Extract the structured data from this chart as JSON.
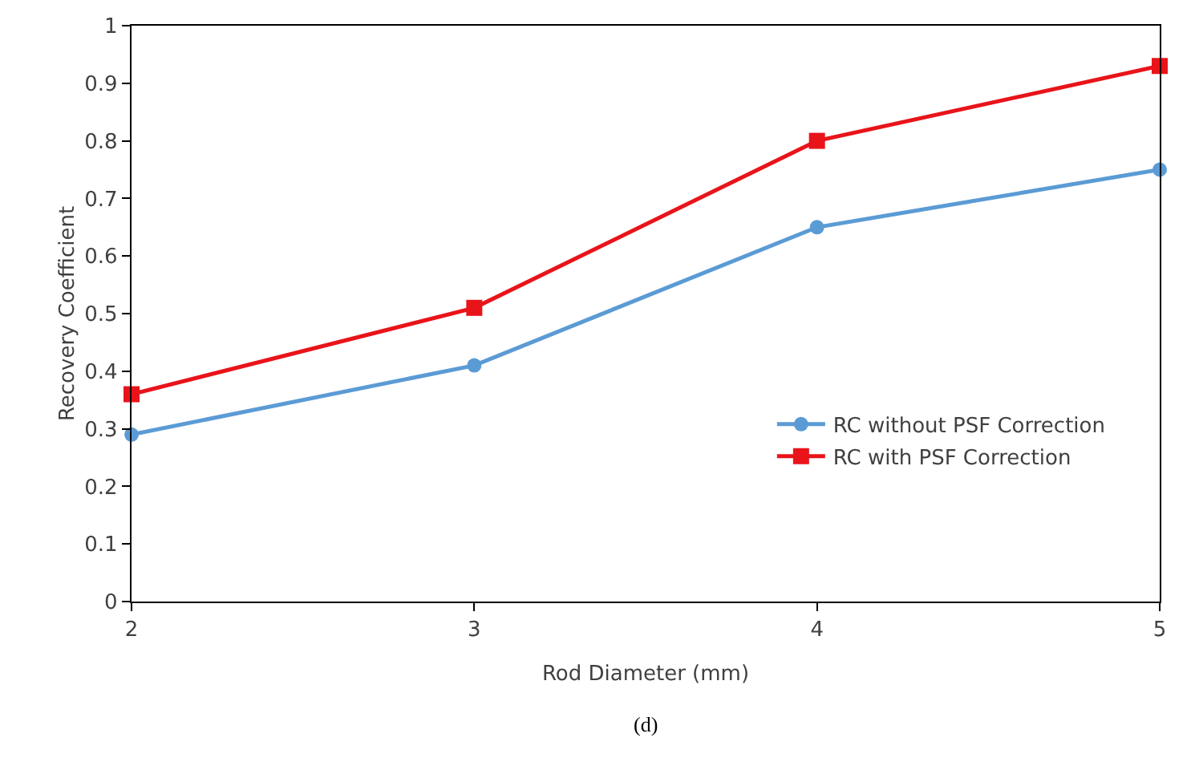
{
  "chart_data": {
    "type": "line",
    "xlabel": "Rod Diameter (mm)",
    "ylabel": "Recovery Coefficient",
    "x": [
      2,
      3,
      4,
      5
    ],
    "series": [
      {
        "name": "RC without PSF Correction",
        "color": "#5b9bd5",
        "marker": "circle",
        "values": [
          0.29,
          0.41,
          0.65,
          0.75
        ]
      },
      {
        "name": "RC with PSF Correction",
        "color": "#e8141a",
        "marker": "square",
        "values": [
          0.36,
          0.51,
          0.8,
          0.93
        ]
      }
    ],
    "xlim": [
      2,
      5
    ],
    "xticks": [
      2,
      3,
      4,
      5
    ],
    "ylim": [
      0,
      1
    ],
    "yticks": [
      0,
      0.1,
      0.2,
      0.3,
      0.4,
      0.5,
      0.6,
      0.7,
      0.8,
      0.9,
      1
    ],
    "grid": false,
    "legend": "right",
    "line_style": "solid",
    "annotations": [
      "(d)"
    ]
  }
}
